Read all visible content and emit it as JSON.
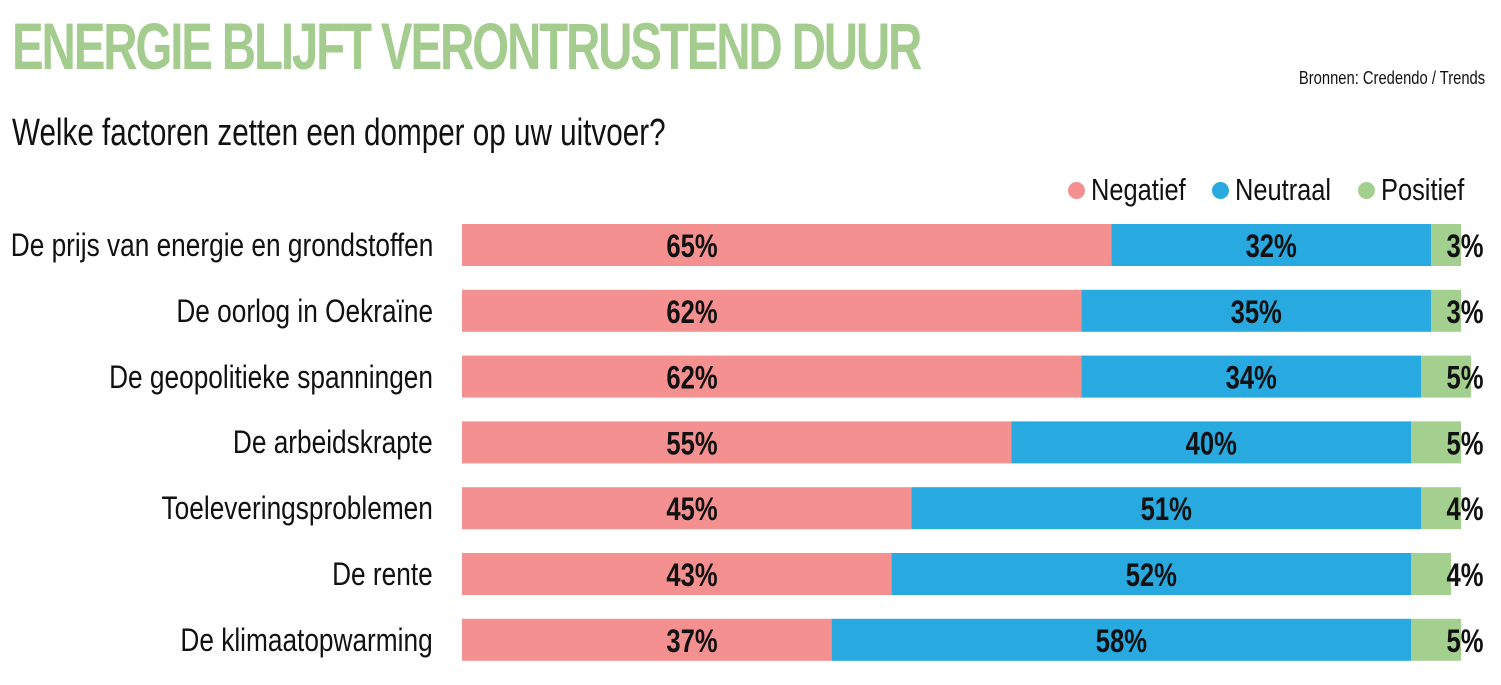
{
  "header": {
    "title": "ENERGIE BLIJFT VERONTRUSTEND DUUR",
    "source": "Bronnen: Credendo / Trends",
    "subtitle": "Welke factoren zetten een domper op uw uitvoer?"
  },
  "chart_data": {
    "type": "bar",
    "orientation": "horizontal",
    "stacked": true,
    "title": "ENERGIE BLIJFT VERONTRUSTEND DUUR",
    "subtitle": "Welke factoren zetten een domper op uw uitvoer?",
    "legend_position": "top-right",
    "xlim": [
      0,
      100
    ],
    "categories": [
      "De prijs van energie en grondstoffen",
      "De oorlog in Oekraïne",
      "De geopolitieke spanningen",
      "De arbeidskrapte",
      "Toeleveringsproblemen",
      "De rente",
      "De klimaatopwarming"
    ],
    "series": [
      {
        "name": "Negatief",
        "color": "#f4908f",
        "values": [
          65,
          62,
          62,
          55,
          45,
          43,
          37
        ]
      },
      {
        "name": "Neutraal",
        "color": "#28a9e0",
        "values": [
          32,
          35,
          34,
          40,
          51,
          52,
          58
        ]
      },
      {
        "name": "Positief",
        "color": "#a3cf8f",
        "values": [
          3,
          3,
          5,
          5,
          4,
          4,
          5
        ]
      }
    ],
    "value_suffix": "%"
  }
}
